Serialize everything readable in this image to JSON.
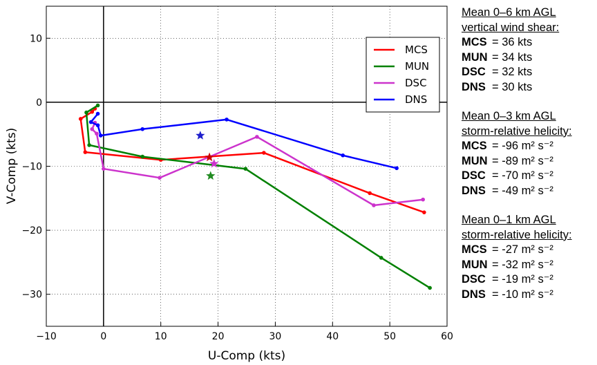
{
  "chart_data": {
    "type": "line",
    "title": "",
    "xlabel": "U-Comp (kts)",
    "ylabel": "V-Comp (kts)",
    "xlim": [
      -10,
      60
    ],
    "ylim": [
      -35,
      15
    ],
    "xticks": [
      "−10",
      "0",
      "10",
      "20",
      "30",
      "40",
      "50",
      "60"
    ],
    "yticks": [
      "10",
      "0",
      "−10",
      "−20",
      "−30"
    ],
    "xtick_values": [
      -10,
      0,
      10,
      20,
      30,
      40,
      50,
      60
    ],
    "ytick_values": [
      10,
      0,
      -10,
      -20,
      -30
    ],
    "grid": true,
    "legend_position": "top-right",
    "series": [
      {
        "name": "MCS",
        "color": "#ff0000",
        "x": [
          -1.5,
          -2.0,
          -4.0,
          -3.2,
          10.0,
          28.0,
          46.5,
          56.0
        ],
        "y": [
          -1.0,
          -1.5,
          -2.6,
          -7.8,
          -9.0,
          -7.9,
          -14.2,
          -17.2
        ]
      },
      {
        "name": "MUN",
        "color": "#008000",
        "x": [
          -1.0,
          -3.0,
          -2.5,
          6.8,
          24.8,
          48.5,
          57.0
        ],
        "y": [
          -0.5,
          -1.6,
          -6.7,
          -8.5,
          -10.4,
          -24.3,
          -29.0
        ]
      },
      {
        "name": "DSC",
        "color": "#cc33cc",
        "x": [
          -1.5,
          -2.0,
          -1.2,
          0.0,
          9.8,
          26.8,
          47.2,
          55.8
        ],
        "y": [
          -3.2,
          -4.2,
          -4.9,
          -10.4,
          -11.8,
          -5.4,
          -16.1,
          -15.2
        ]
      },
      {
        "name": "DNS",
        "color": "#0000ff",
        "x": [
          -1.0,
          -2.2,
          -1.0,
          -0.5,
          6.8,
          21.5,
          41.8,
          51.2
        ],
        "y": [
          -1.8,
          -3.1,
          -3.6,
          -5.2,
          -4.2,
          -2.7,
          -8.3,
          -10.3
        ]
      }
    ],
    "storm_motion": [
      {
        "series": "MCS",
        "color": "#cc0000",
        "x": 18.5,
        "y": -8.6
      },
      {
        "series": "MUN",
        "color": "#228b22",
        "x": 18.7,
        "y": -11.5
      },
      {
        "series": "DSC",
        "color": "#cc33cc",
        "x": 19.3,
        "y": -9.6
      },
      {
        "series": "DNS",
        "color": "#1f1fcc",
        "x": 16.9,
        "y": -5.2
      }
    ]
  },
  "stats": [
    {
      "heading": [
        "Mean 0–6 km AGL",
        "vertical wind shear:"
      ],
      "rows": [
        {
          "name": "MCS",
          "value": "= 36 kts"
        },
        {
          "name": "MUN",
          "value": "= 34 kts"
        },
        {
          "name": "DSC",
          "value": "= 32 kts"
        },
        {
          "name": "DNS",
          "value": "= 30 kts"
        }
      ]
    },
    {
      "heading": [
        "Mean 0–3 km AGL",
        "storm-relative helicity:"
      ],
      "rows": [
        {
          "name": "MCS",
          "value": "= -96 m² s⁻²"
        },
        {
          "name": "MUN",
          "value": "= -89 m² s⁻²"
        },
        {
          "name": "DSC",
          "value": "= -70 m² s⁻²"
        },
        {
          "name": "DNS",
          "value": "= -49 m² s⁻²"
        }
      ]
    },
    {
      "heading": [
        "Mean 0–1 km AGL",
        "storm-relative helicity:"
      ],
      "rows": [
        {
          "name": "MCS",
          "value": "= -27 m² s⁻²"
        },
        {
          "name": "MUN",
          "value": "= -32 m² s⁻²"
        },
        {
          "name": "DSC",
          "value": "= -19 m² s⁻²"
        },
        {
          "name": "DNS",
          "value": "= -10 m² s⁻²"
        }
      ]
    }
  ]
}
